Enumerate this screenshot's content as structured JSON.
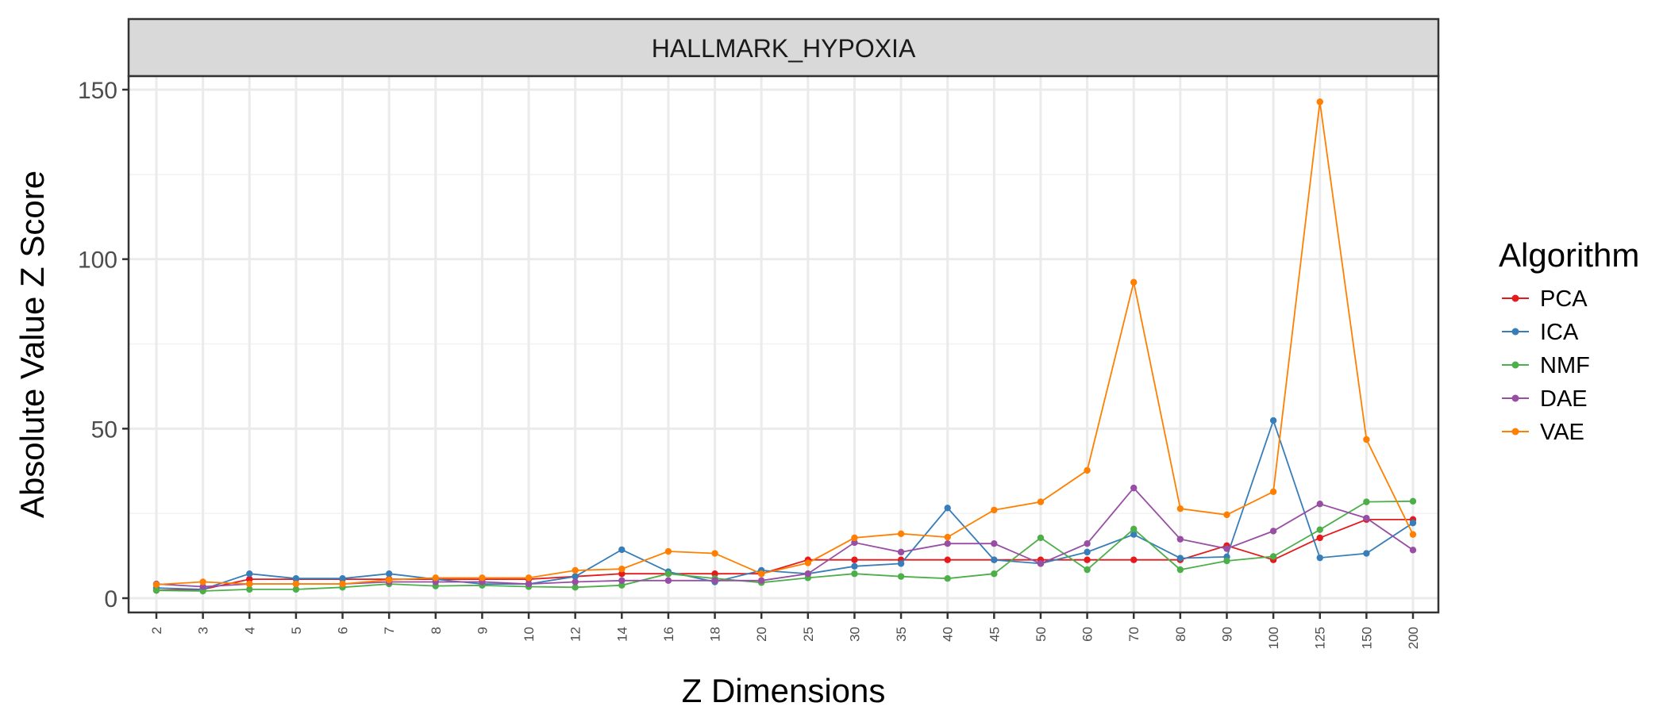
{
  "chart_data": {
    "type": "line",
    "facet_title": "HALLMARK_HYPOXIA",
    "xlabel": "Z Dimensions",
    "ylabel": "Absolute Value Z Score",
    "categories": [
      "2",
      "3",
      "4",
      "5",
      "6",
      "7",
      "8",
      "9",
      "10",
      "12",
      "14",
      "16",
      "18",
      "20",
      "25",
      "30",
      "35",
      "40",
      "45",
      "50",
      "60",
      "70",
      "80",
      "90",
      "100",
      "125",
      "150",
      "200"
    ],
    "yticks": [
      0,
      50,
      100,
      150
    ],
    "ylim": [
      -5,
      150
    ],
    "grid": true,
    "legend": {
      "title": "Algorithm",
      "position": "right"
    },
    "series": [
      {
        "name": "PCA",
        "color": "#E41A1C",
        "values": [
          2.3,
          2.6,
          5.6,
          5.6,
          5.6,
          5.6,
          5.6,
          5.6,
          5.6,
          6.4,
          7.2,
          7.2,
          7.2,
          7.2,
          11.3,
          11.3,
          11.3,
          11.3,
          11.3,
          11.3,
          11.3,
          11.3,
          11.3,
          15.5,
          11.3,
          17.8,
          23.2,
          23.2
        ]
      },
      {
        "name": "ICA",
        "color": "#377EB8",
        "values": [
          3.0,
          2.6,
          7.2,
          5.8,
          5.8,
          7.2,
          5.6,
          4.2,
          4.2,
          6.4,
          14.3,
          7.8,
          4.8,
          8.2,
          7.2,
          9.4,
          10.2,
          26.6,
          11.3,
          10.2,
          13.6,
          18.8,
          11.8,
          12.2,
          52.4,
          11.9,
          13.2,
          22.2
        ]
      },
      {
        "name": "NMF",
        "color": "#4DAF4A",
        "values": [
          2.3,
          2.1,
          2.6,
          2.6,
          3.2,
          4.2,
          3.6,
          3.8,
          3.4,
          3.2,
          3.8,
          7.2,
          5.8,
          4.6,
          6.0,
          7.2,
          6.4,
          5.8,
          7.2,
          17.8,
          8.4,
          20.4,
          8.4,
          11.0,
          12.3,
          20.2,
          28.4,
          28.6
        ]
      },
      {
        "name": "DAE",
        "color": "#984EA3",
        "values": [
          4.2,
          3.4,
          4.2,
          4.2,
          4.2,
          4.8,
          4.8,
          4.8,
          4.2,
          4.8,
          5.2,
          5.2,
          5.2,
          5.2,
          7.2,
          16.4,
          13.6,
          16.1,
          16.1,
          10.2,
          16.1,
          32.5,
          17.4,
          14.6,
          19.8,
          27.8,
          23.6,
          14.2
        ]
      },
      {
        "name": "VAE",
        "color": "#FF7F00",
        "values": [
          4.0,
          4.8,
          4.2,
          4.2,
          4.2,
          5.4,
          6.0,
          6.0,
          6.0,
          8.2,
          8.6,
          13.8,
          13.2,
          7.2,
          10.4,
          17.8,
          19.0,
          18.0,
          26.0,
          28.4,
          37.7,
          93.2,
          26.4,
          24.6,
          31.4,
          146.4,
          46.8,
          18.8
        ]
      }
    ]
  }
}
